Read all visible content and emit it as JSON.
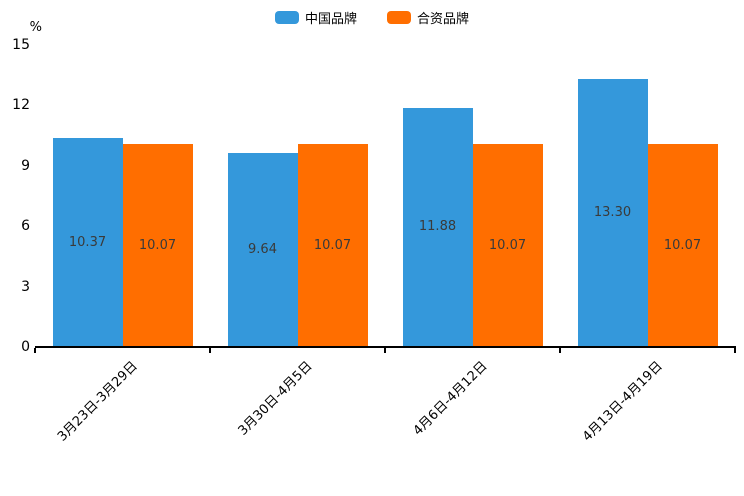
{
  "legend": {
    "items": [
      {
        "label": "中国品牌",
        "color": "#3498db"
      },
      {
        "label": "合资品牌",
        "color": "#ff6e00"
      }
    ]
  },
  "chart_data": {
    "type": "bar",
    "categories": [
      "3月23日-3月29日",
      "3月30日-4月5日",
      "4月6日-4月12日",
      "4月13日-4月19日"
    ],
    "series": [
      {
        "name": "中国品牌",
        "color": "#3498db",
        "values": [
          10.37,
          9.64,
          11.88,
          13.3
        ]
      },
      {
        "name": "合资品牌",
        "color": "#ff6e00",
        "values": [
          10.07,
          10.07,
          10.07,
          10.07
        ]
      }
    ],
    "title": "",
    "xlabel": "",
    "ylabel": "%",
    "ylim": [
      0,
      15
    ],
    "yticks": [
      0,
      3,
      6,
      9,
      12,
      15
    ],
    "grid": false,
    "legend_position": "top",
    "value_labels": "inside-center",
    "value_label_decimals": 2,
    "x_label_rotation": 45
  }
}
